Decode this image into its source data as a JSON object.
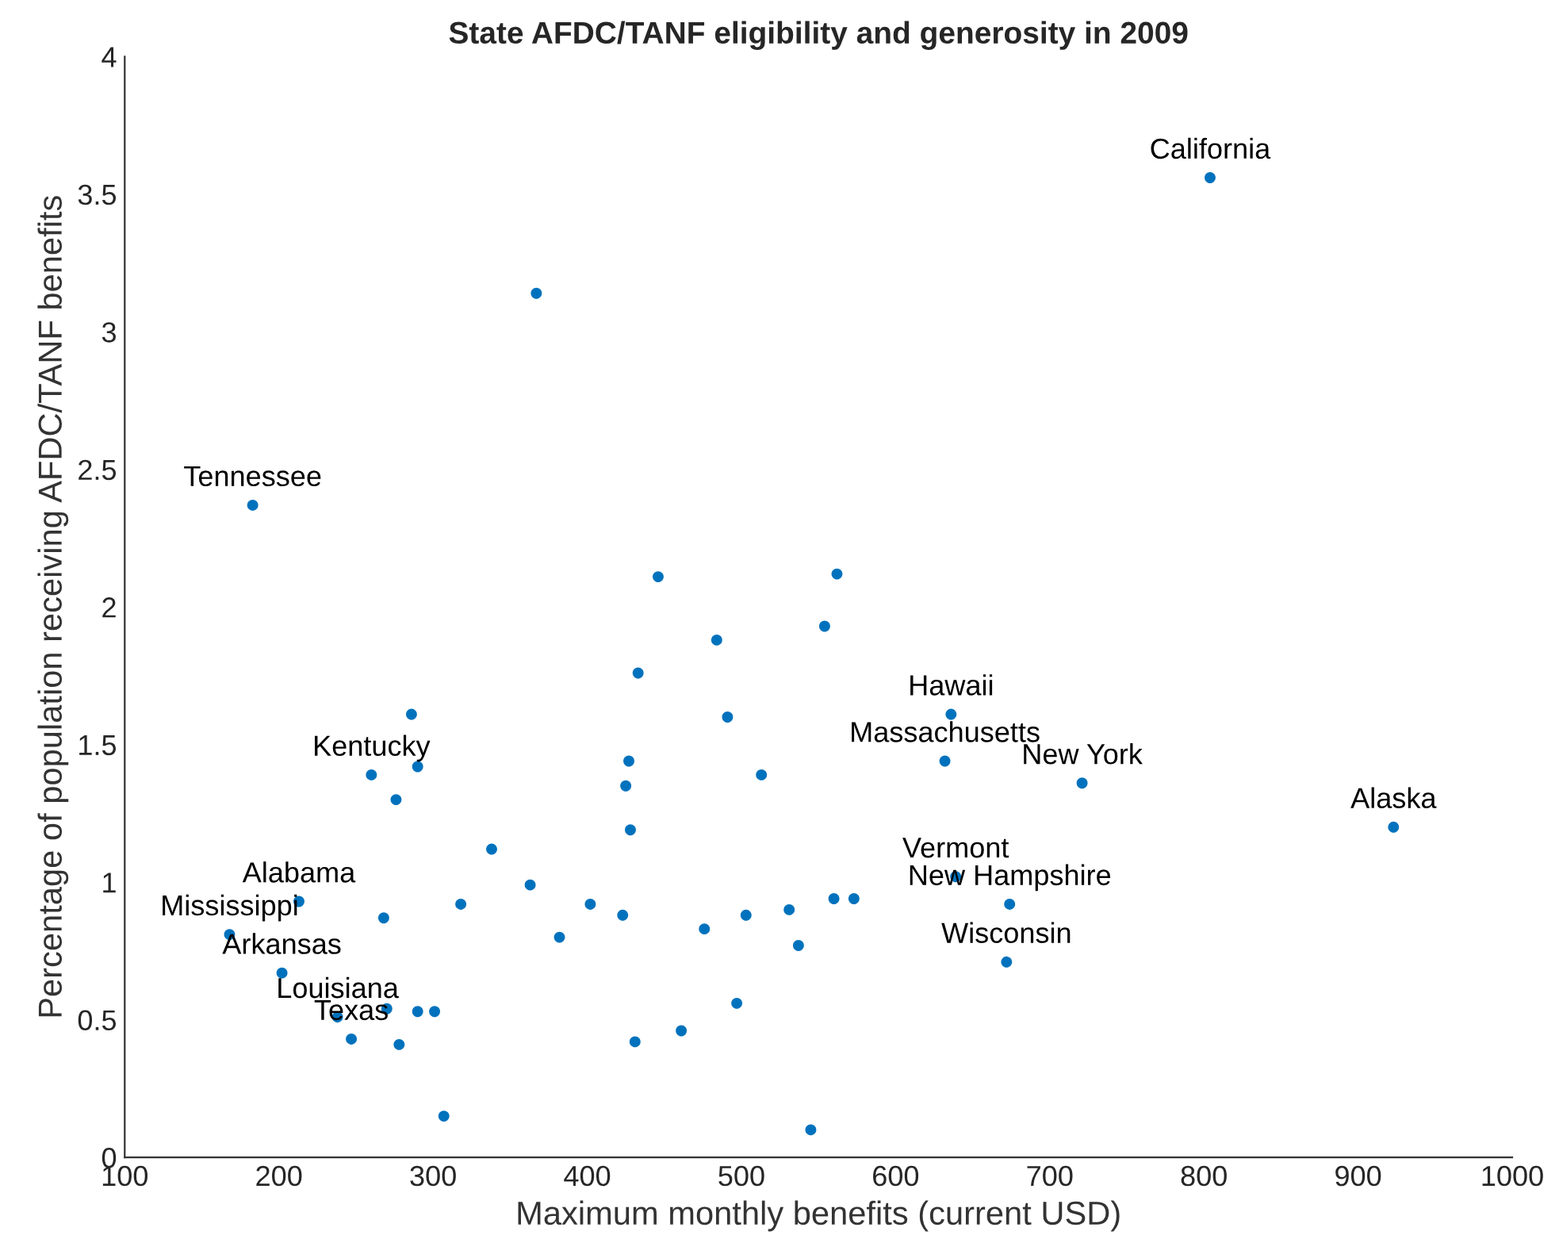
{
  "chart_data": {
    "type": "scatter",
    "title": "State AFDC/TANF eligibility and generosity in 2009",
    "xlabel": "Maximum monthly benefits (current USD)",
    "ylabel": "Percentage of population receiving AFDC/TANF benefits",
    "xlim": [
      100,
      1000
    ],
    "xticks": [
      100,
      200,
      300,
      400,
      500,
      600,
      700,
      800,
      900,
      1000
    ],
    "ylim": [
      0,
      4
    ],
    "yticks": [
      0,
      0.5,
      1,
      1.5,
      2,
      2.5,
      3,
      3.5,
      4
    ],
    "grid": false,
    "marker": "circle",
    "series": [
      {
        "color": "#0072bd",
        "x": [
          183,
          804,
          367,
          286,
          290,
          260,
          276,
          338,
          363,
          318,
          402,
          268,
          382,
          213,
          168,
          202,
          238,
          247,
          270,
          290,
          301,
          278,
          307,
          446,
          562,
          554,
          484,
          433,
          491,
          636,
          427,
          513,
          632,
          425,
          428,
          423,
          476,
          503,
          531,
          560,
          573,
          537,
          497,
          461,
          431,
          545,
          639,
          674,
          672,
          721,
          923
        ],
        "values": [
          2.37,
          3.56,
          3.14,
          1.61,
          1.42,
          1.39,
          1.3,
          1.12,
          0.99,
          0.92,
          0.92,
          0.87,
          0.8,
          0.93,
          0.81,
          0.67,
          0.51,
          0.43,
          0.54,
          0.53,
          0.53,
          0.41,
          0.15,
          2.11,
          2.12,
          1.93,
          1.88,
          1.76,
          1.6,
          1.61,
          1.44,
          1.39,
          1.44,
          1.35,
          1.19,
          0.88,
          0.83,
          0.88,
          0.9,
          0.94,
          0.94,
          0.77,
          0.56,
          0.46,
          0.42,
          0.1,
          1.02,
          0.92,
          0.71,
          1.36,
          1.2
        ]
      }
    ],
    "annotations": [
      {
        "text": "Tennessee",
        "x": 183,
        "y": 2.37
      },
      {
        "text": "California",
        "x": 804,
        "y": 3.56
      },
      {
        "text": "Kentucky",
        "x": 260,
        "y": 1.39
      },
      {
        "text": "Alabama",
        "x": 213,
        "y": 0.93
      },
      {
        "text": "Mississippi",
        "x": 168,
        "y": 0.81
      },
      {
        "text": "Arkansas",
        "x": 202,
        "y": 0.67
      },
      {
        "text": "Louisiana",
        "x": 238,
        "y": 0.51
      },
      {
        "text": "Texas",
        "x": 247,
        "y": 0.43
      },
      {
        "text": "Hawaii",
        "x": 636,
        "y": 1.61
      },
      {
        "text": "Massachusetts",
        "x": 632,
        "y": 1.44
      },
      {
        "text": "New York",
        "x": 721,
        "y": 1.36
      },
      {
        "text": "Alaska",
        "x": 923,
        "y": 1.2
      },
      {
        "text": "Vermont",
        "x": 639,
        "y": 1.02
      },
      {
        "text": "New Hampshire",
        "x": 674,
        "y": 0.92
      },
      {
        "text": "Wisconsin",
        "x": 672,
        "y": 0.71
      }
    ]
  }
}
